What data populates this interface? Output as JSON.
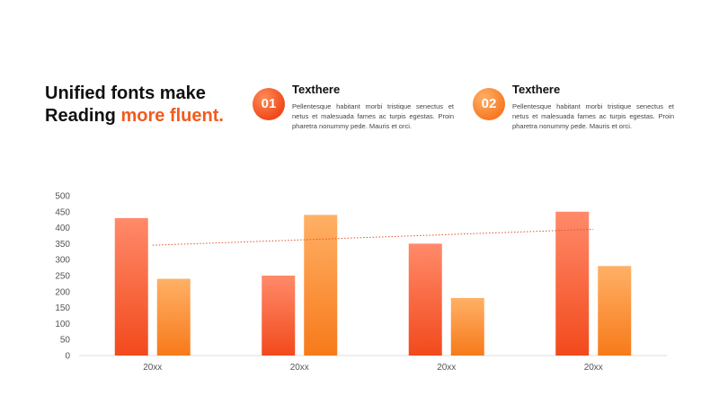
{
  "headline": {
    "line1": "Unified fonts make",
    "line2_plain": "Reading ",
    "line2_accent": "more fluent."
  },
  "points": [
    {
      "number": "01",
      "title": "Texthere",
      "text": "Pellentesque habitant morbi tristique senectus et netus et malesuada fames ac turpis egestas. Proin pharetra nonummy pede. Mauris et orci."
    },
    {
      "number": "02",
      "title": "Texthere",
      "text": "Pellentesque habitant morbi tristique senectus et netus et malesuada fames ac turpis egestas. Proin pharetra nonummy pede. Mauris et orci."
    }
  ],
  "colors": {
    "accent": "#f25a1e",
    "series_1_top": "#ff8a6a",
    "series_1_bottom": "#f24a1c",
    "series_2_top": "#ffb066",
    "series_2_bottom": "#f77a1a",
    "trend": "#e0542a"
  },
  "chart_data": {
    "type": "bar",
    "categories": [
      "20xx",
      "20xx",
      "20xx",
      "20xx"
    ],
    "series": [
      {
        "values": [
          430,
          250,
          350,
          450
        ]
      },
      {
        "values": [
          240,
          440,
          180,
          280
        ]
      }
    ],
    "trendline": {
      "style": "dotted",
      "start": 345,
      "end": 395
    },
    "ylim": [
      0,
      500
    ],
    "yticks": [
      0,
      50,
      100,
      150,
      200,
      250,
      300,
      350,
      400,
      450,
      500
    ],
    "grid": false,
    "legend": "none"
  }
}
